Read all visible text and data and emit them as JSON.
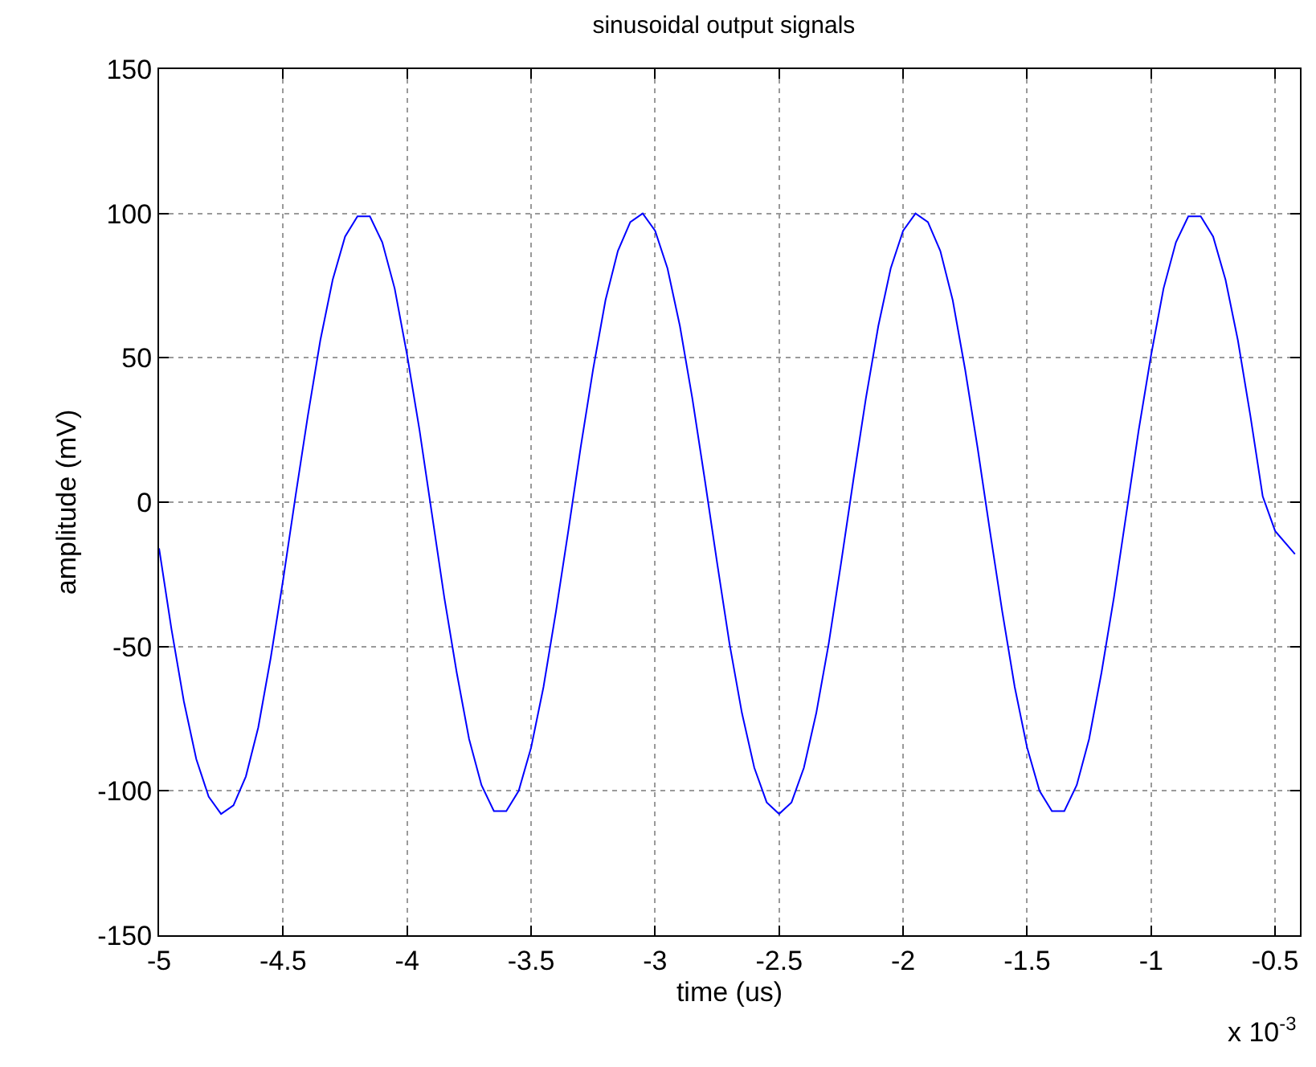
{
  "chart_data": {
    "type": "line",
    "title": "sinusoidal output signals",
    "xlabel": "time (us)",
    "ylabel": "amplitude (mV)",
    "annotations": [
      "x 10$^{-3}$"
    ],
    "x": [
      -5,
      -4.95,
      -4.9,
      -4.85,
      -4.8,
      -4.75,
      -4.7,
      -4.65,
      -4.6,
      -4.55,
      -4.5,
      -4.45,
      -4.4,
      -4.35,
      -4.3,
      -4.25,
      -4.2,
      -4.15,
      -4.1,
      -4.05,
      -4,
      -3.95,
      -3.9,
      -3.85,
      -3.8,
      -3.75,
      -3.7,
      -3.65,
      -3.6,
      -3.55,
      -3.5,
      -3.45,
      -3.4,
      -3.35,
      -3.3,
      -3.25,
      -3.2,
      -3.15,
      -3.1,
      -3.05,
      -3,
      -2.95,
      -2.9,
      -2.85,
      -2.8,
      -2.75,
      -2.7,
      -2.65,
      -2.6,
      -2.55,
      -2.5,
      -2.45,
      -2.4,
      -2.35,
      -2.3,
      -2.25,
      -2.2,
      -2.15,
      -2.1,
      -2.05,
      -2,
      -1.95,
      -1.9,
      -1.85,
      -1.8,
      -1.75,
      -1.7,
      -1.65,
      -1.6,
      -1.55,
      -1.5,
      -1.45,
      -1.4,
      -1.35,
      -1.3,
      -1.25,
      -1.2,
      -1.15,
      -1.1,
      -1.05,
      -1,
      -0.95,
      -0.9,
      -0.85,
      -0.8,
      -0.75,
      -0.7,
      -0.65,
      -0.6,
      -0.55,
      -0.5,
      -0.42
    ],
    "series": [
      {
        "color": "#0000ff",
        "values": [
          -16,
          -44,
          -69,
          -89,
          -102,
          -108,
          -105,
          -95,
          -78,
          -54,
          -27,
          2,
          30,
          56,
          77,
          92,
          99,
          99,
          90,
          74,
          51,
          25,
          -4,
          -33,
          -59,
          -82,
          -98,
          -107,
          -107,
          -100,
          -85,
          -64,
          -38,
          -10,
          19,
          46,
          70,
          87,
          97,
          100,
          94,
          81,
          61,
          36,
          8,
          -21,
          -49,
          -73,
          -92,
          -104,
          -108,
          -104,
          -92,
          -73,
          -49,
          -21,
          8,
          36,
          61,
          81,
          94,
          100,
          97,
          87,
          70,
          46,
          19,
          -10,
          -38,
          -64,
          -85,
          -100,
          -107,
          -107,
          -98,
          -82,
          -59,
          -33,
          -4,
          25,
          51,
          74,
          90,
          99,
          99,
          92,
          77,
          56,
          30,
          2,
          -10,
          -18
        ]
      }
    ],
    "xlim": [
      -5,
      -0.4
    ],
    "xticks": [
      -5,
      -4.5,
      -4,
      -3.5,
      -3,
      -2.5,
      -2,
      -1.5,
      -1,
      -0.5
    ],
    "ylim": [
      -150,
      150
    ],
    "yticks": [
      -150,
      -100,
      -50,
      0,
      50,
      100,
      150
    ],
    "grid": true,
    "marker": "none",
    "line_style": "solid"
  }
}
